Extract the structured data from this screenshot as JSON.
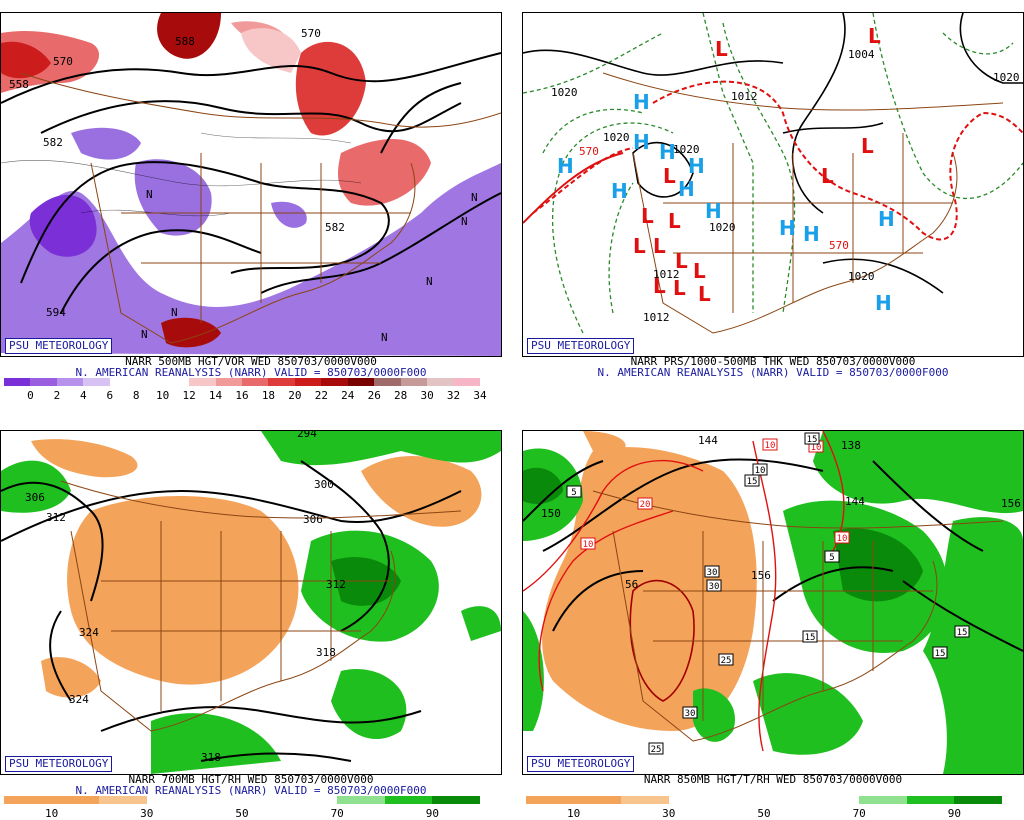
{
  "panels": {
    "tl": {
      "logo": "PSU METEOROLOGY",
      "caption1": "NARR 500MB HGT/VOR WED 850703/0000V000",
      "caption2": "N. AMERICAN REANALYSIS (NARR) VALID = 850703/0000F000",
      "colorbar": [
        "#7b2fd6",
        "#9a5fe0",
        "#b891ea",
        "#d6c2f3",
        "#ffffff",
        "#ffffff",
        "#ffffff",
        "#f7c7c7",
        "#f09a9a",
        "#e86a6a",
        "#de3b3b",
        "#cc1c1c",
        "#a80b0b",
        "#7a0000",
        "#a06b6b",
        "#c79a9a",
        "#e3c4c4",
        "#f7b6c8"
      ],
      "ticks": [
        "0",
        "2",
        "4",
        "6",
        "8",
        "10",
        "12",
        "14",
        "16",
        "18",
        "20",
        "22",
        "24",
        "26",
        "28",
        "30",
        "32",
        "34"
      ],
      "map_labels": [
        "558",
        "570",
        "582",
        "594",
        "582",
        "588",
        "570",
        "N",
        "N",
        "N",
        "N",
        "N",
        "N",
        "N"
      ]
    },
    "tr": {
      "logo": "PSU METEOROLOGY",
      "caption1": "NARR PRS/1000-500MB THK WED 850703/0000V000",
      "caption2": "N. AMERICAN REANALYSIS (NARR) VALID = 850703/0000F000",
      "map_labels": [
        "1020",
        "1020",
        "1012",
        "1004",
        "1020",
        "1012",
        "1020",
        "570",
        "570",
        "1020",
        "1012",
        "1020"
      ],
      "highs": [
        "H",
        "H",
        "H",
        "H",
        "H",
        "H",
        "H",
        "H",
        "H",
        "H",
        "H",
        "H"
      ],
      "lows": [
        "L",
        "L",
        "L",
        "L",
        "L",
        "L",
        "L",
        "L",
        "L",
        "L",
        "L",
        "L",
        "L",
        "L"
      ]
    },
    "bl": {
      "logo": "PSU METEOROLOGY",
      "caption1": "NARR 700MB HGT/RH WED 850703/0000V000",
      "caption2": "N. AMERICAN REANALYSIS (NARR) VALID = 850703/0000F000",
      "colorbar": [
        "#f4a35a",
        "#f4a35a",
        "#f7c48d",
        "#ffffff",
        "#ffffff",
        "#ffffff",
        "#ffffff",
        "#8fe08f",
        "#1fbf1f",
        "#0a8a0a"
      ],
      "ticks": [
        "10",
        "30",
        "50",
        "70",
        "90"
      ],
      "map_labels": [
        "306",
        "312",
        "300",
        "306",
        "312",
        "318",
        "324",
        "324",
        "318",
        "294"
      ]
    },
    "br": {
      "logo": "PSU METEOROLOGY",
      "caption1": "NARR 850MB HGT/T/RH WED 850703/0000V000",
      "colorbar": [
        "#f4a35a",
        "#f4a35a",
        "#f7c48d",
        "#ffffff",
        "#ffffff",
        "#ffffff",
        "#ffffff",
        "#8fe08f",
        "#1fbf1f",
        "#0a8a0a"
      ],
      "ticks": [
        "10",
        "30",
        "50",
        "70",
        "90"
      ],
      "map_labels": [
        "150",
        "144",
        "138",
        "144",
        "156",
        "156",
        "56"
      ],
      "boxed_labels": [
        "5",
        "10",
        "10",
        "15",
        "15",
        "15",
        "15",
        "20",
        "10",
        "10",
        "30",
        "30",
        "25",
        "30",
        "25",
        "5",
        "10",
        "15"
      ]
    }
  }
}
